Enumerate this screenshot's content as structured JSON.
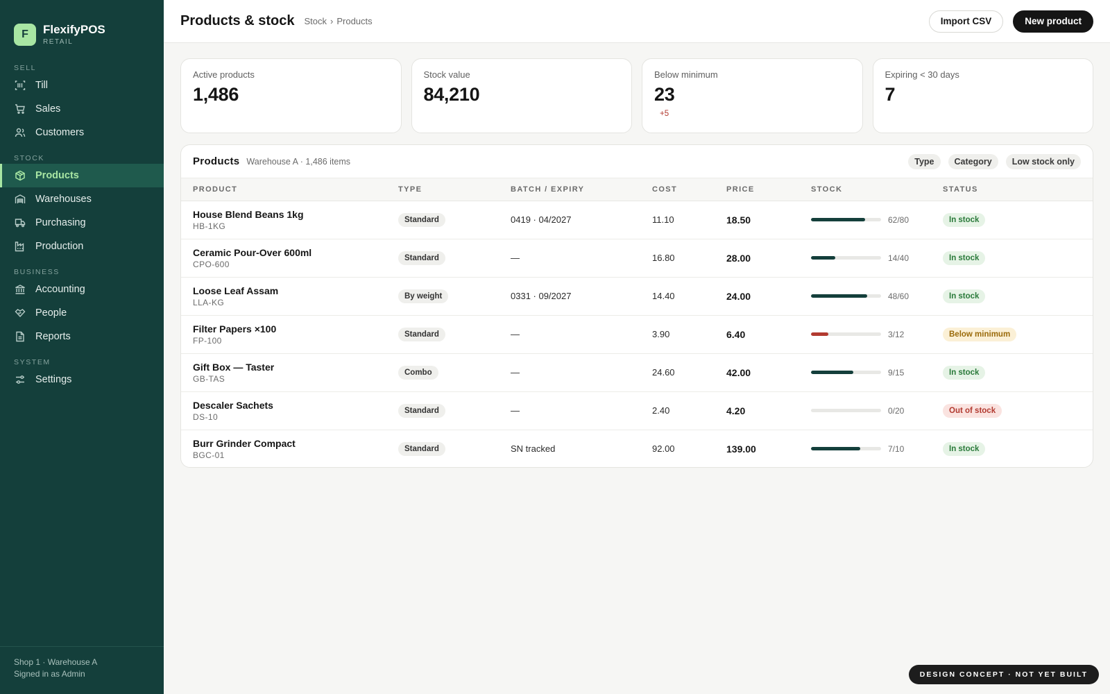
{
  "brand": {
    "initial": "F",
    "name": "FlexifyPOS",
    "subtitle": "RETAIL"
  },
  "sidebar": {
    "sections": [
      {
        "label": "SELL",
        "items": [
          {
            "label": "Till",
            "icon": "barcode-icon"
          },
          {
            "label": "Sales",
            "icon": "cart-icon"
          },
          {
            "label": "Customers",
            "icon": "users-icon"
          }
        ]
      },
      {
        "label": "STOCK",
        "items": [
          {
            "label": "Products",
            "icon": "box-icon",
            "active": true
          },
          {
            "label": "Warehouses",
            "icon": "warehouse-icon"
          },
          {
            "label": "Purchasing",
            "icon": "truck-icon"
          },
          {
            "label": "Production",
            "icon": "factory-icon"
          }
        ]
      },
      {
        "label": "BUSINESS",
        "items": [
          {
            "label": "Accounting",
            "icon": "bank-icon"
          },
          {
            "label": "People",
            "icon": "handshake-icon"
          },
          {
            "label": "Reports",
            "icon": "report-icon"
          }
        ]
      },
      {
        "label": "SYSTEM",
        "items": [
          {
            "label": "Settings",
            "icon": "sliders-icon"
          }
        ]
      }
    ],
    "footer": {
      "location": "Shop 1 · Warehouse A",
      "user": "Signed in as Admin"
    }
  },
  "header": {
    "title": "Products & stock",
    "breadcrumb": [
      "Stock",
      "Products"
    ],
    "breadcrumb_sep": "›",
    "import_label": "Import CSV",
    "new_label": "New product"
  },
  "kpis": [
    {
      "label": "Active products",
      "value": "1,486",
      "delta": ""
    },
    {
      "label": "Stock value",
      "value": "84,210",
      "delta": ""
    },
    {
      "label": "Below minimum",
      "value": "23",
      "delta": "+5"
    },
    {
      "label": "Expiring < 30 days",
      "value": "7",
      "delta": ""
    }
  ],
  "products_card": {
    "title": "Products",
    "subtitle": "Warehouse A · 1,486 items",
    "filters": [
      "Type",
      "Category",
      "Low stock only"
    ],
    "columns": [
      "PRODUCT",
      "TYPE",
      "BATCH / EXPIRY",
      "COST",
      "PRICE",
      "STOCK",
      "STATUS"
    ],
    "rows": [
      {
        "name": "House Blend Beans 1kg",
        "sku": "HB-1KG",
        "type": "Standard",
        "batch": "0419 · 04/2027",
        "cost": "11.10",
        "price": "18.50",
        "stock": 62,
        "max": 80,
        "stock_label": "62/80",
        "status": "In stock",
        "status_kind": "in"
      },
      {
        "name": "Ceramic Pour-Over 600ml",
        "sku": "CPO-600",
        "type": "Standard",
        "batch": "—",
        "cost": "16.80",
        "price": "28.00",
        "stock": 14,
        "max": 40,
        "stock_label": "14/40",
        "status": "In stock",
        "status_kind": "in"
      },
      {
        "name": "Loose Leaf Assam",
        "sku": "LLA-KG",
        "type": "By weight",
        "batch": "0331 · 09/2027",
        "cost": "14.40",
        "price": "24.00",
        "stock": 48,
        "max": 60,
        "stock_label": "48/60",
        "status": "In stock",
        "status_kind": "in"
      },
      {
        "name": "Filter Papers ×100",
        "sku": "FP-100",
        "type": "Standard",
        "batch": "—",
        "cost": "3.90",
        "price": "6.40",
        "stock": 3,
        "max": 12,
        "stock_label": "3/12",
        "status": "Below minimum",
        "status_kind": "low"
      },
      {
        "name": "Gift Box — Taster",
        "sku": "GB-TAS",
        "type": "Combo",
        "batch": "—",
        "cost": "24.60",
        "price": "42.00",
        "stock": 9,
        "max": 15,
        "stock_label": "9/15",
        "status": "In stock",
        "status_kind": "in"
      },
      {
        "name": "Descaler Sachets",
        "sku": "DS-10",
        "type": "Standard",
        "batch": "—",
        "cost": "2.40",
        "price": "4.20",
        "stock": 0,
        "max": 20,
        "stock_label": "0/20",
        "status": "Out of stock",
        "status_kind": "out"
      },
      {
        "name": "Burr Grinder Compact",
        "sku": "BGC-01",
        "type": "Standard",
        "batch": "SN tracked",
        "cost": "92.00",
        "price": "139.00",
        "stock": 7,
        "max": 10,
        "stock_label": "7/10",
        "status": "In stock",
        "status_kind": "in"
      }
    ]
  },
  "concept_badge": "DESIGN CONCEPT · NOT YET BUILT",
  "colors": {
    "sidebar": "#143f3b",
    "accent": "#a8e6a3",
    "danger": "#b23a30"
  }
}
